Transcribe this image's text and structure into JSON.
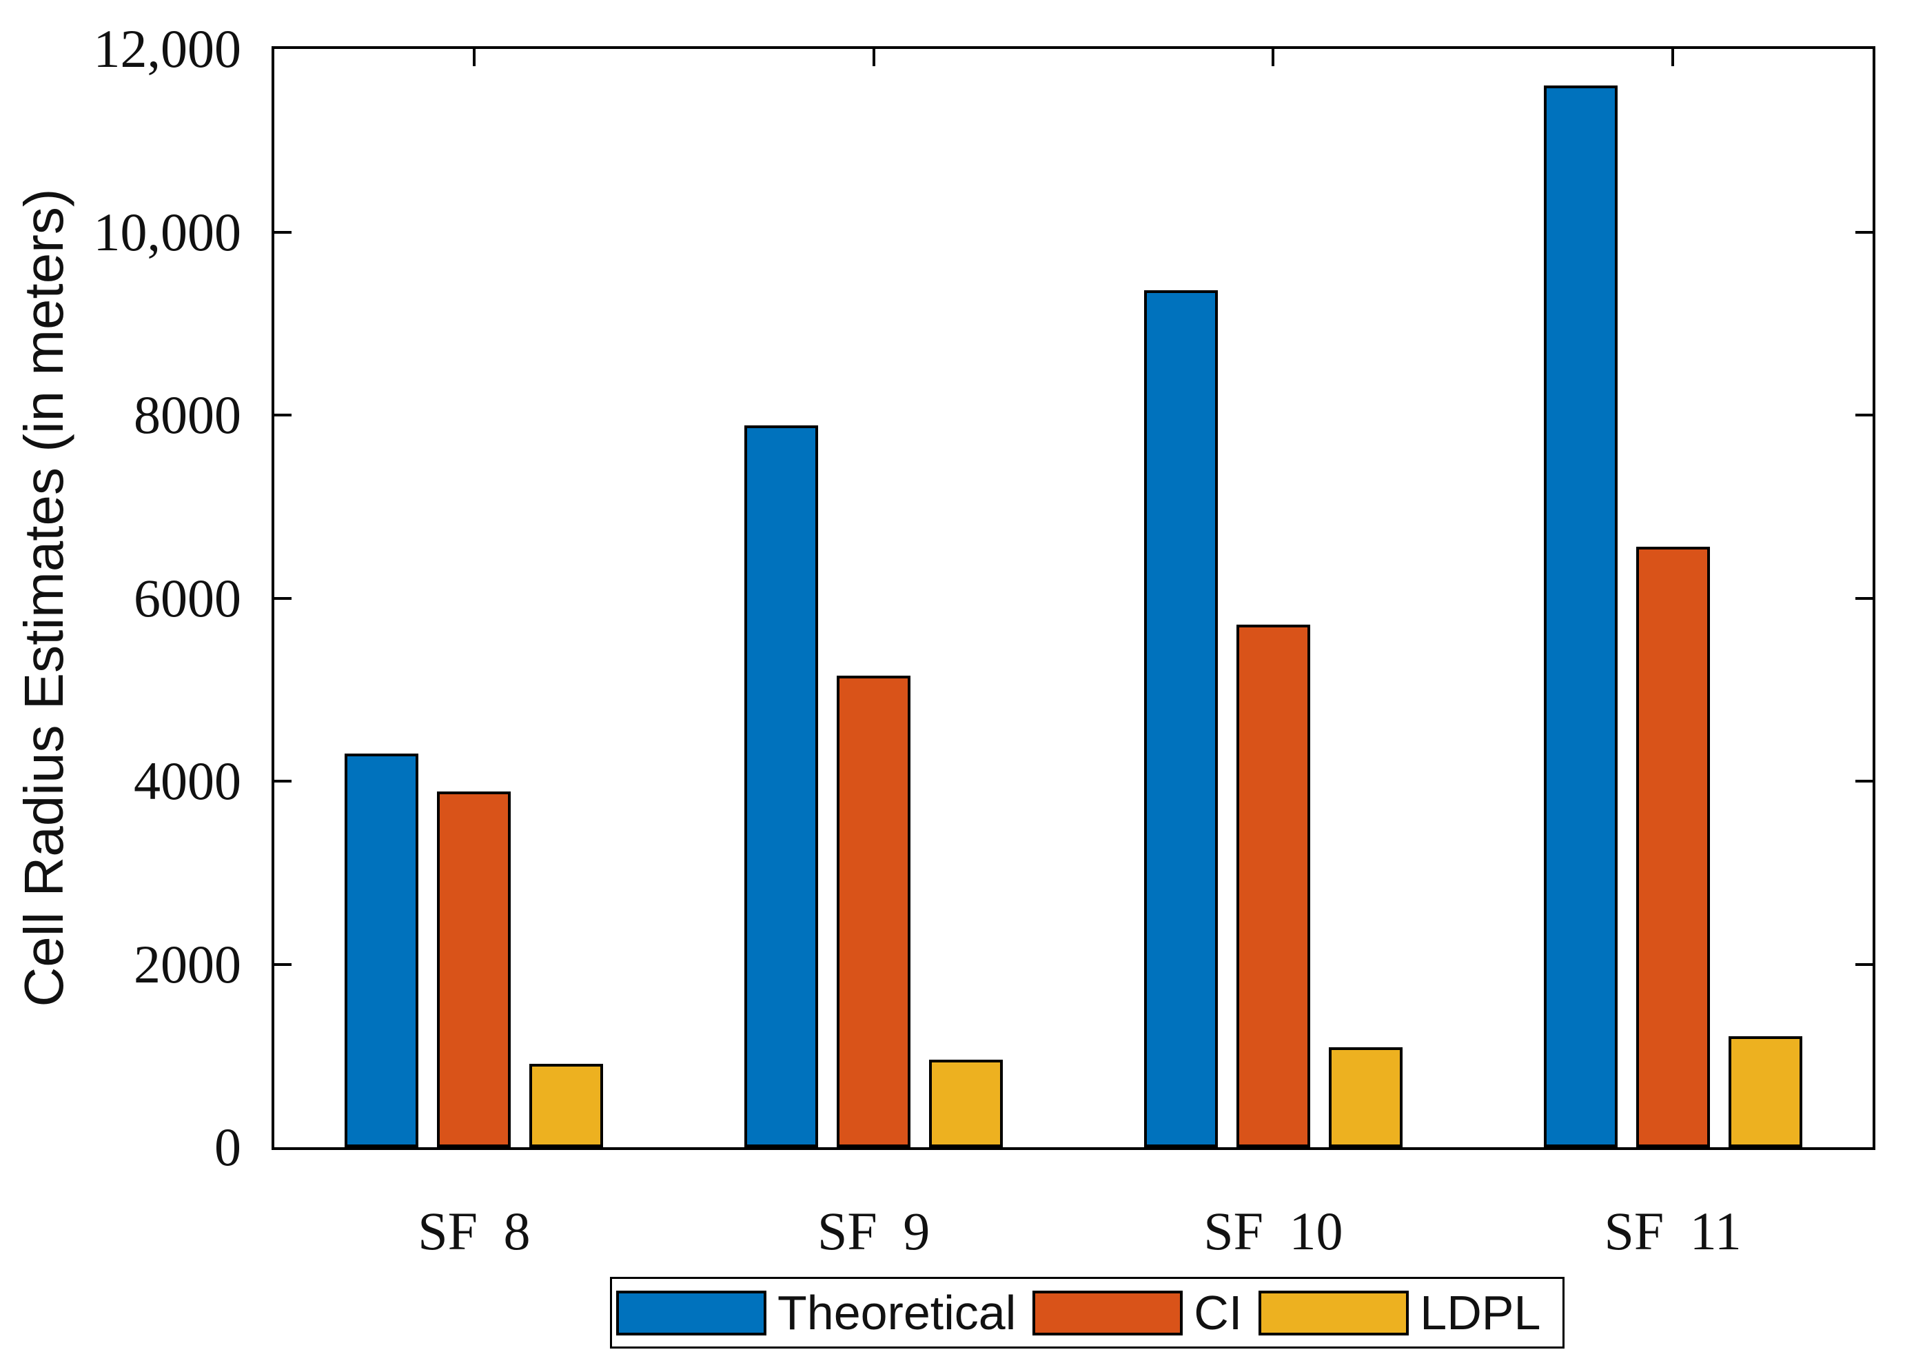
{
  "figure": {
    "background": "#ffffff"
  },
  "chart_data": {
    "type": "bar",
    "title": "",
    "categories": [
      "SF 8",
      "SF 9",
      "SF 10",
      "SF 11"
    ],
    "series": [
      {
        "name": "Theoretical",
        "color": "#0072BD",
        "values": [
          4300,
          7890,
          9360,
          11600
        ]
      },
      {
        "name": "CI",
        "color": "#D95319",
        "values": [
          3890,
          5150,
          5710,
          6560
        ]
      },
      {
        "name": "LDPL",
        "color": "#EDB120",
        "values": [
          915,
          960,
          1090,
          1215
        ]
      }
    ],
    "xlabel": "",
    "ylabel": "Cell Radius Estimates (in meters)",
    "ylim": [
      0,
      12000
    ],
    "yticks": [
      {
        "value": 0,
        "label": "0"
      },
      {
        "value": 2000,
        "label": "2000"
      },
      {
        "value": 4000,
        "label": "4000"
      },
      {
        "value": 6000,
        "label": "6000"
      },
      {
        "value": 8000,
        "label": "8000"
      },
      {
        "value": 10000,
        "label": "10,000"
      },
      {
        "value": 12000,
        "label": "12,000"
      }
    ],
    "grid": false,
    "legend_position": "bottom-center",
    "bar_edge_color": "#000000"
  }
}
